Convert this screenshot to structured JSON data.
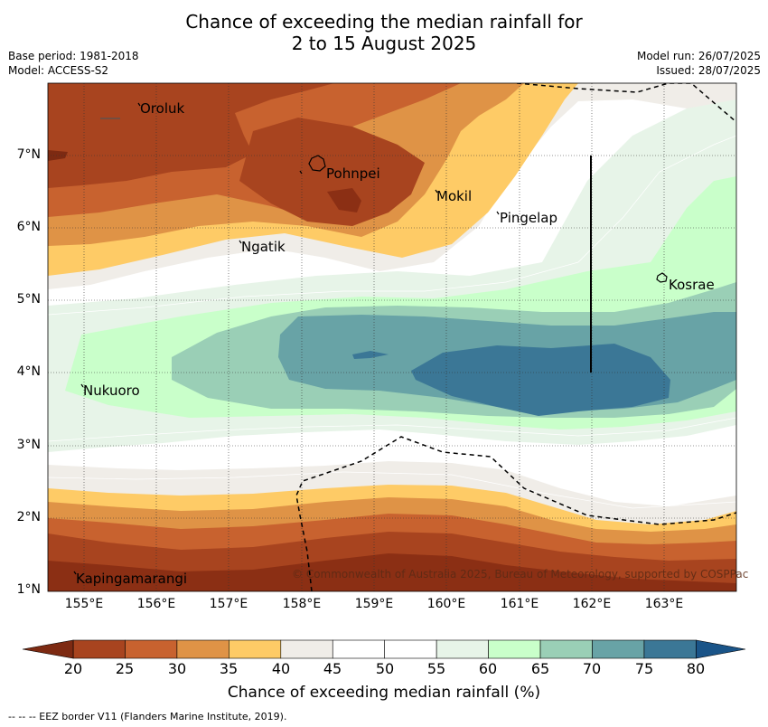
{
  "header": {
    "title_line1": "Chance of exceeding the median rainfall for",
    "title_line2": "2 to 15 August 2025",
    "base_period": "Base period: 1981-2018",
    "model": "Model: ACCESS-S2",
    "model_run": "Model run: 26/07/2025",
    "issued": "Issued: 28/07/2025"
  },
  "map": {
    "lon_ticks": [
      "155°E",
      "156°E",
      "157°E",
      "158°E",
      "159°E",
      "160°E",
      "161°E",
      "162°E",
      "163°E"
    ],
    "lat_ticks": [
      "7°N",
      "6°N",
      "5°N",
      "4°N",
      "3°N",
      "2°N",
      "1°N"
    ],
    "places": {
      "oroluk": "Oroluk",
      "pohnpei": "Pohnpei",
      "mokil": "Mokil",
      "pingelap": "Pingelap",
      "ngatik": "Ngatik",
      "kosrae": "Kosrae",
      "nukuoro": "Nukuoro",
      "kapingamarangi": "Kapingamarangi"
    },
    "copyright": "© Commonwealth of Australia 2025, Bureau of Meteorology, supported by COSPPac"
  },
  "colorbar": {
    "ticks": [
      "20",
      "25",
      "30",
      "35",
      "40",
      "45",
      "50",
      "55",
      "60",
      "65",
      "70",
      "75",
      "80"
    ],
    "colors": [
      "#a8441f",
      "#c8622f",
      "#df9346",
      "#fecb66",
      "#f0ede8",
      "#ffffff",
      "#ffffff",
      "#e7f4e8",
      "#c9ffca",
      "#9acfb6",
      "#68a3a6",
      "#3b7796"
    ],
    "under_color": "#7d2a12",
    "over_color": "#1a5488",
    "title": "Chance of exceeding median rainfall (%)"
  },
  "footnote": "--  --  -- EEZ border V11 (Flanders Marine Institute, 2019)."
}
